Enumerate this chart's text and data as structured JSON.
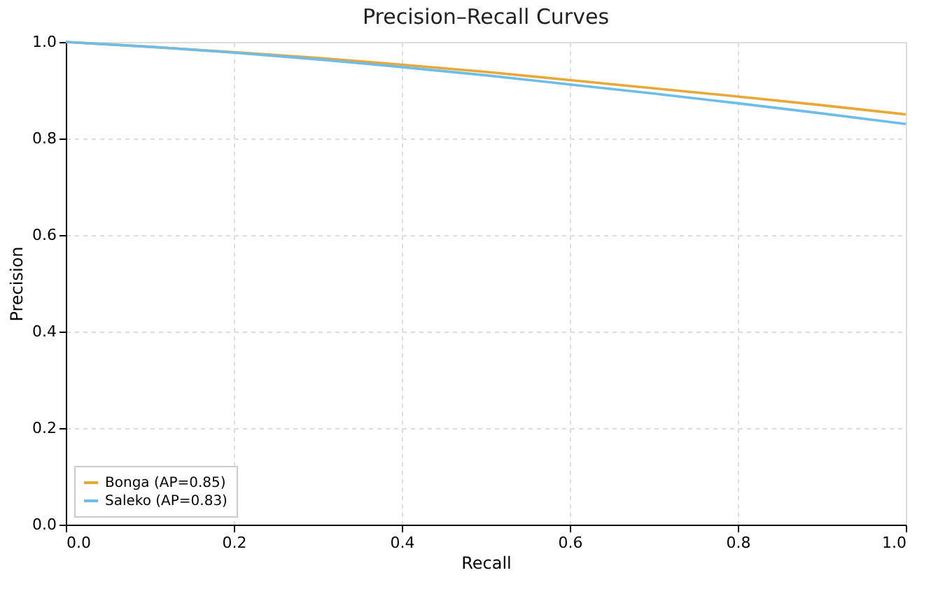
{
  "chart_data": {
    "type": "line",
    "title": "Precision–Recall Curves",
    "xlabel": "Recall",
    "ylabel": "Precision",
    "x": [
      0,
      0.1,
      0.2,
      0.3,
      0.4,
      0.5,
      0.6,
      0.7,
      0.8,
      0.9,
      1.0
    ],
    "series": [
      {
        "name": "Bonga (AP=0.85)",
        "color": "#e8a838",
        "values": [
          1.0,
          0.99,
          0.979,
          0.967,
          0.953,
          0.938,
          0.921,
          0.904,
          0.887,
          0.869,
          0.85
        ]
      },
      {
        "name": "Saleko (AP=0.83)",
        "color": "#6cbde8",
        "values": [
          1.0,
          0.99,
          0.978,
          0.964,
          0.948,
          0.931,
          0.912,
          0.893,
          0.873,
          0.852,
          0.83
        ]
      }
    ],
    "xlim": [
      0,
      1
    ],
    "ylim": [
      0,
      1
    ],
    "xticks": [
      {
        "value": 0,
        "label": "0.0"
      },
      {
        "value": 0.2,
        "label": "0.2"
      },
      {
        "value": 0.4,
        "label": "0.4"
      },
      {
        "value": 0.6,
        "label": "0.6"
      },
      {
        "value": 0.8,
        "label": "0.8"
      },
      {
        "value": 1,
        "label": "1.0"
      }
    ],
    "yticks": [
      {
        "value": 0,
        "label": "0.0"
      },
      {
        "value": 0.2,
        "label": "0.2"
      },
      {
        "value": 0.4,
        "label": "0.4"
      },
      {
        "value": 0.6,
        "label": "0.6"
      },
      {
        "value": 0.8,
        "label": "0.8"
      },
      {
        "value": 1,
        "label": "1.0"
      }
    ],
    "grid": true,
    "legend": "bottom left",
    "line_style": "solid",
    "marker": "none"
  }
}
